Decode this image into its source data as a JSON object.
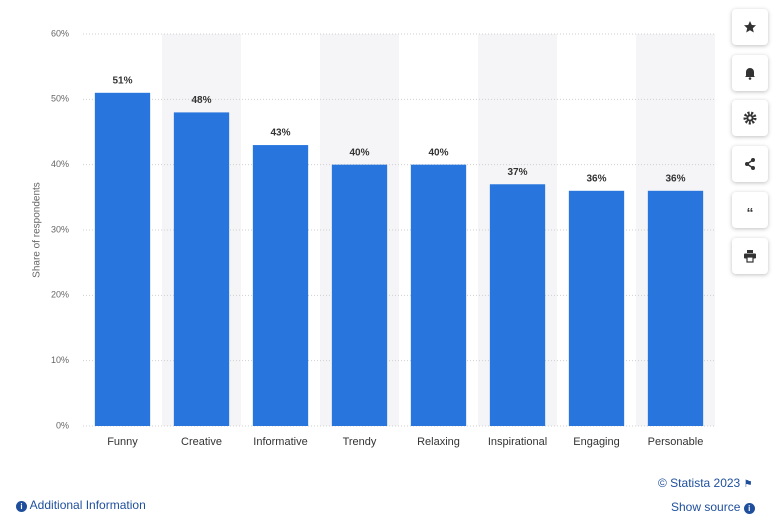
{
  "chart_data": {
    "type": "bar",
    "y_label": "Share of respondents",
    "categories": [
      "Funny",
      "Creative",
      "Informative",
      "Trendy",
      "Relaxing",
      "Inspirational",
      "Engaging",
      "Personable"
    ],
    "values": [
      51,
      48,
      43,
      40,
      40,
      37,
      36,
      36
    ],
    "value_labels": [
      "51%",
      "48%",
      "43%",
      "40%",
      "40%",
      "37%",
      "36%",
      "36%"
    ],
    "color": "#2876dd",
    "ylim": [
      0,
      60
    ],
    "yticks": [
      {
        "value": 0,
        "label": "0%"
      },
      {
        "value": 10,
        "label": "10%"
      },
      {
        "value": 20,
        "label": "20%"
      },
      {
        "value": 30,
        "label": "30%"
      },
      {
        "value": 40,
        "label": "40%"
      },
      {
        "value": 50,
        "label": "50%"
      },
      {
        "value": 60,
        "label": "60%"
      }
    ],
    "grid": true
  },
  "footer": {
    "copyright": "© Statista 2023",
    "show_source": "Show source",
    "additional_information": "Additional Information"
  }
}
